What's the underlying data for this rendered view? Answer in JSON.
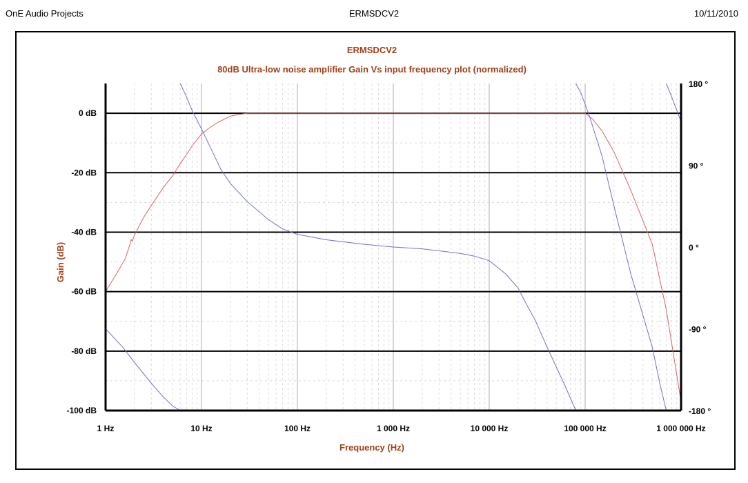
{
  "header": {
    "left": "OnE Audio Projects",
    "center": "ERMSDCV2",
    "right": "10/11/2010"
  },
  "chart_data": {
    "type": "line",
    "title": "ERMSDCV2",
    "subtitle": "80dB Ultra-low noise amplifier Gain Vs input frequency plot (normalized)",
    "xlabel": "Frequency (Hz)",
    "ylabel": "Gain (dB)",
    "x_scale": "log",
    "xlim": [
      1,
      1000000
    ],
    "ylim": [
      -100,
      10
    ],
    "y2lim": [
      -180,
      180
    ],
    "grid": true,
    "x_ticks": [
      {
        "value": 1,
        "label": "1 Hz"
      },
      {
        "value": 10,
        "label": "10 Hz"
      },
      {
        "value": 100,
        "label": "100 Hz"
      },
      {
        "value": 1000,
        "label": "1 000 Hz"
      },
      {
        "value": 10000,
        "label": "10 000 Hz"
      },
      {
        "value": 100000,
        "label": "100 000 Hz"
      },
      {
        "value": 1000000,
        "label": "1 000 000 Hz"
      }
    ],
    "y_ticks": [
      {
        "value": 0,
        "label": "0 dB"
      },
      {
        "value": -20,
        "label": "-20 dB"
      },
      {
        "value": -40,
        "label": "-40 dB"
      },
      {
        "value": -60,
        "label": "-60 dB"
      },
      {
        "value": -80,
        "label": "-80 dB"
      },
      {
        "value": -100,
        "label": "-100 dB"
      }
    ],
    "y2_ticks": [
      {
        "value": 180,
        "label": "180 °"
      },
      {
        "value": 90,
        "label": "90 °"
      },
      {
        "value": 0,
        "label": "0 °"
      },
      {
        "value": -90,
        "label": "-90 °"
      },
      {
        "value": -180,
        "label": "-180 °"
      }
    ],
    "series": [
      {
        "axis": "left",
        "color": "#e06060",
        "points": [
          [
            1,
            -60
          ],
          [
            1.3,
            -54
          ],
          [
            1.6,
            -49
          ],
          [
            1.8,
            -44
          ],
          [
            1.85,
            -42.5
          ],
          [
            1.9,
            -43
          ],
          [
            2,
            -41
          ],
          [
            2.5,
            -35
          ],
          [
            3,
            -31
          ],
          [
            4,
            -25
          ],
          [
            5,
            -21
          ],
          [
            6,
            -17
          ],
          [
            8,
            -11
          ],
          [
            10,
            -7
          ],
          [
            12,
            -5
          ],
          [
            15,
            -3
          ],
          [
            20,
            -1
          ],
          [
            25,
            -0.4
          ],
          [
            30,
            0
          ],
          [
            100000,
            0
          ],
          [
            120000,
            -2
          ],
          [
            150000,
            -6
          ],
          [
            200000,
            -13
          ],
          [
            300000,
            -26
          ],
          [
            500000,
            -44
          ],
          [
            700000,
            -66
          ],
          [
            1000000,
            -97
          ]
        ]
      },
      {
        "axis": "right",
        "color": "#7070d0",
        "segments": [
          [
            [
              1,
              -90
            ],
            [
              1.5,
              -110
            ],
            [
              2,
              -127
            ],
            [
              3,
              -150
            ],
            [
              4,
              -165
            ],
            [
              5,
              -175
            ],
            [
              6,
              -180
            ]
          ],
          [
            [
              6,
              180
            ],
            [
              7,
              165
            ],
            [
              8,
              150
            ],
            [
              10,
              130
            ],
            [
              13,
              105
            ],
            [
              16,
              85
            ],
            [
              20,
              70
            ],
            [
              30,
              50
            ],
            [
              50,
              30
            ],
            [
              70,
              20
            ],
            [
              100,
              14
            ],
            [
              200,
              8
            ],
            [
              500,
              3
            ],
            [
              1000,
              0
            ],
            [
              2000,
              -2
            ],
            [
              5000,
              -7
            ],
            [
              7000,
              -10
            ],
            [
              10000,
              -15
            ],
            [
              15000,
              -30
            ],
            [
              20000,
              -45
            ],
            [
              25000,
              -65
            ],
            [
              30000,
              -80
            ],
            [
              40000,
              -110
            ],
            [
              60000,
              -150
            ],
            [
              80000,
              -180
            ]
          ],
          [
            [
              80000,
              180
            ],
            [
              90000,
              170
            ],
            [
              110000,
              145
            ],
            [
              150000,
              100
            ],
            [
              200000,
              45
            ],
            [
              300000,
              -30
            ],
            [
              500000,
              -110
            ],
            [
              600000,
              -150
            ],
            [
              700000,
              -180
            ]
          ],
          [
            [
              700000,
              180
            ],
            [
              800000,
              165
            ],
            [
              1000000,
              138
            ]
          ]
        ]
      }
    ]
  }
}
